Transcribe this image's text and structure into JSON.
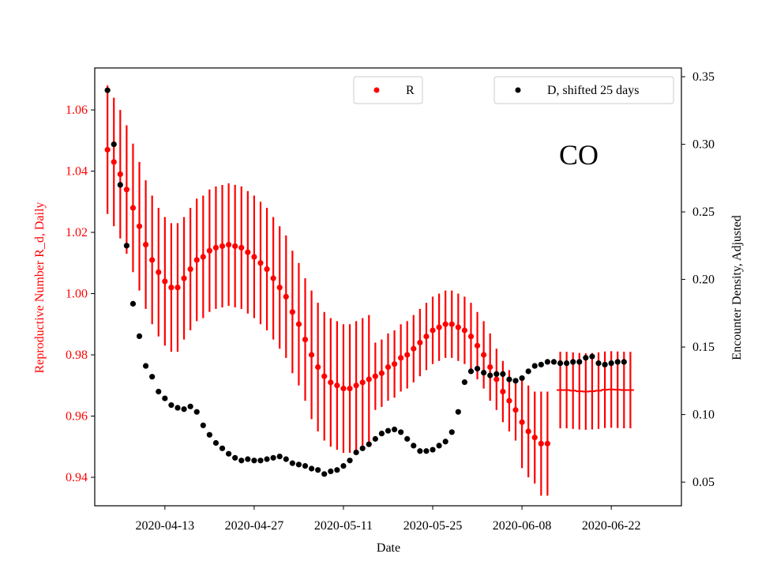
{
  "chart_data": {
    "type": "scatter",
    "xlabel": "Date",
    "ylabel_left": "Reproductive Number R_d, Daily",
    "ylabel_right": "Encounter Density, Adjusted",
    "annotation": "CO",
    "x_start": "2020-04-04",
    "x_range": [
      "2020-04-02",
      "2020-07-03"
    ],
    "ylim_left": [
      0.9307,
      1.0737
    ],
    "ylim_right": [
      0.0325,
      0.3565
    ],
    "x_ticks": [
      "2020-04-13",
      "2020-04-27",
      "2020-05-11",
      "2020-05-25",
      "2020-06-08",
      "2020-06-22"
    ],
    "y_ticks_left": [
      "0.94",
      "0.96",
      "0.98",
      "1.00",
      "1.02",
      "1.04",
      "1.06"
    ],
    "y_ticks_right": [
      "0.05",
      "0.10",
      "0.15",
      "0.20",
      "0.25",
      "0.30",
      "0.35"
    ],
    "legend_left": "top-center",
    "legend_right": "top-right",
    "colors": {
      "R": "#ff0000",
      "D": "#000000",
      "left_axis": "#ff0000",
      "right_axis": "#000000"
    },
    "series": [
      {
        "name": "R",
        "axis": "left",
        "values": [
          1.047,
          1.043,
          1.039,
          1.034,
          1.028,
          1.022,
          1.016,
          1.011,
          1.007,
          1.004,
          1.002,
          1.002,
          1.005,
          1.008,
          1.011,
          1.012,
          1.014,
          1.015,
          1.0155,
          1.016,
          1.0155,
          1.015,
          1.0135,
          1.012,
          1.01,
          1.008,
          1.005,
          1.002,
          0.999,
          0.994,
          0.99,
          0.985,
          0.98,
          0.976,
          0.973,
          0.971,
          0.97,
          0.969,
          0.969,
          0.97,
          0.971,
          0.972,
          0.973,
          0.974,
          0.976,
          0.977,
          0.979,
          0.98,
          0.982,
          0.984,
          0.986,
          0.988,
          0.989,
          0.99,
          0.99,
          0.989,
          0.988,
          0.986,
          0.983,
          0.98,
          0.976,
          0.972,
          0.968,
          0.965,
          0.962,
          0.958,
          0.955,
          0.953,
          0.951,
          0.951
        ],
        "err": [
          0.021,
          0.021,
          0.021,
          0.021,
          0.021,
          0.021,
          0.021,
          0.021,
          0.021,
          0.021,
          0.021,
          0.021,
          0.02,
          0.02,
          0.02,
          0.02,
          0.02,
          0.02,
          0.02,
          0.02,
          0.02,
          0.02,
          0.02,
          0.02,
          0.02,
          0.02,
          0.02,
          0.02,
          0.02,
          0.02,
          0.02,
          0.02,
          0.021,
          0.021,
          0.021,
          0.021,
          0.021,
          0.021,
          0.021,
          0.021,
          0.021,
          0.021,
          0.011,
          0.011,
          0.011,
          0.011,
          0.011,
          0.011,
          0.011,
          0.011,
          0.011,
          0.011,
          0.011,
          0.011,
          0.011,
          0.011,
          0.011,
          0.011,
          0.011,
          0.011,
          0.011,
          0.01,
          0.01,
          0.01,
          0.01,
          0.015,
          0.015,
          0.015,
          0.017,
          0.017
        ],
        "flat_start_index": 71,
        "flat_values": [
          0.9685,
          0.9685,
          0.9683,
          0.9681,
          0.968,
          0.9681,
          0.9683,
          0.9686,
          0.9687,
          0.9686,
          0.9685,
          0.9685
        ],
        "flat_err": 0.0125
      },
      {
        "name": "D, shifted 25 days",
        "axis": "right",
        "values": [
          0.34,
          0.3,
          0.27,
          0.225,
          0.182,
          0.158,
          0.136,
          0.128,
          0.117,
          0.112,
          0.107,
          0.105,
          0.104,
          0.106,
          0.102,
          0.092,
          0.085,
          0.079,
          0.075,
          0.071,
          0.068,
          0.066,
          0.067,
          0.066,
          0.066,
          0.067,
          0.068,
          0.069,
          0.067,
          0.064,
          0.063,
          0.062,
          0.06,
          0.059,
          0.056,
          0.058,
          0.059,
          0.062,
          0.066,
          0.072,
          0.075,
          0.078,
          0.082,
          0.086,
          0.088,
          0.089,
          0.087,
          0.082,
          0.077,
          0.073,
          0.073,
          0.074,
          0.077,
          0.08,
          0.087,
          0.102,
          0.124,
          0.132,
          0.134,
          0.131,
          0.129,
          0.13,
          0.13,
          0.126,
          0.125,
          0.127,
          0.132,
          0.136,
          0.137,
          0.139,
          0.139,
          0.138,
          0.138,
          0.139,
          0.139,
          0.142,
          0.143,
          0.138,
          0.137,
          0.138,
          0.139,
          0.139
        ]
      }
    ]
  }
}
